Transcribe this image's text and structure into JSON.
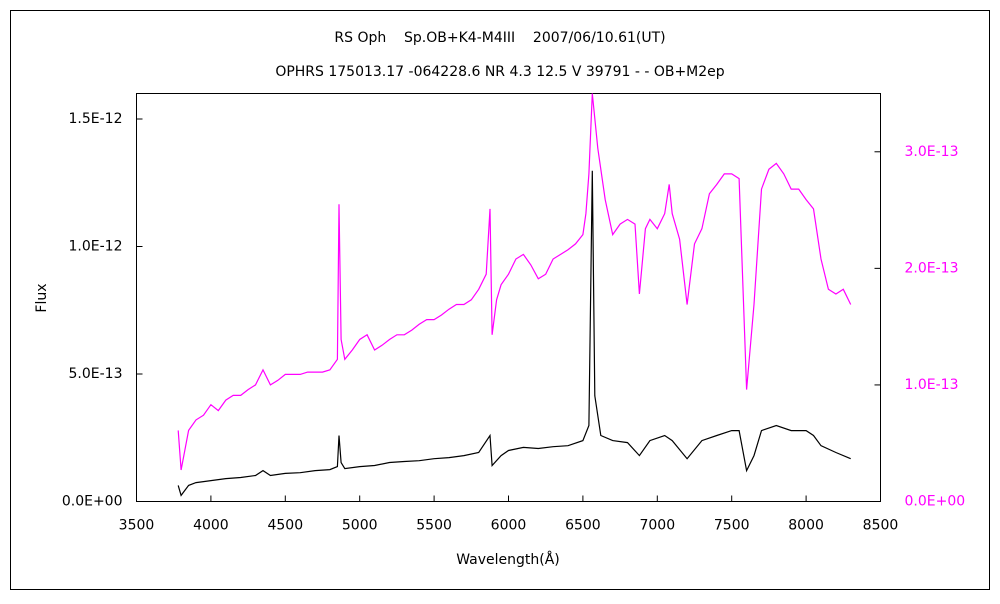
{
  "chart_data": {
    "type": "line",
    "title": "RS Oph    Sp.OB+K4-M4III    2007/06/10.61(UT)",
    "subtitle": "OPHRS 175013.17 -064228.6 NR 4.3 12.5 V 39791 - - OB+M2ep",
    "xlabel": "Wavelength(Å)",
    "ylabel": "Flux",
    "xlim": [
      3500,
      8500
    ],
    "xticks": [
      3500,
      4000,
      4500,
      5000,
      5500,
      6000,
      6500,
      7000,
      7500,
      8000,
      8500
    ],
    "ylim": [
      0,
      1.6e-12
    ],
    "yticks": [
      {
        "value": 0,
        "label": "0.0E+00"
      },
      {
        "value": 5e-13,
        "label": "5.0E-13"
      },
      {
        "value": 1e-12,
        "label": "1.0E-12"
      },
      {
        "value": 1.5e-12,
        "label": "1.5E-12"
      }
    ],
    "y2lim": [
      0,
      3.5e-13
    ],
    "y2ticks": [
      {
        "value": 0,
        "label": "0.0E+00"
      },
      {
        "value": 1e-13,
        "label": "1.0E-13"
      },
      {
        "value": 2e-13,
        "label": "2.0E-13"
      },
      {
        "value": 3e-13,
        "label": "3.0E-13"
      }
    ],
    "y2color": "#ff00ff",
    "series": [
      {
        "color": "#000000",
        "axis": "y",
        "x": [
          3780,
          3800,
          3850,
          3900,
          3950,
          4000,
          4100,
          4200,
          4300,
          4350,
          4400,
          4500,
          4600,
          4700,
          4800,
          4850,
          4861,
          4875,
          4900,
          5000,
          5100,
          5200,
          5300,
          5400,
          5500,
          5600,
          5700,
          5800,
          5876,
          5890,
          5950,
          6000,
          6100,
          6200,
          6300,
          6400,
          6500,
          6540,
          6563,
          6580,
          6620,
          6700,
          6800,
          6880,
          6950,
          7050,
          7100,
          7200,
          7300,
          7400,
          7500,
          7550,
          7600,
          7650,
          7700,
          7800,
          7900,
          8000,
          8050,
          8100,
          8200,
          8300
        ],
        "values": [
          6.3e-14,
          2.4e-14,
          6.3e-14,
          7.4e-14,
          7.8e-14,
          8.2e-14,
          9e-14,
          9.4e-14,
          1.02e-13,
          1.21e-13,
          1.02e-13,
          1.1e-13,
          1.13e-13,
          1.21e-13,
          1.25e-13,
          1.37e-13,
          2.59e-13,
          1.53e-13,
          1.29e-13,
          1.37e-13,
          1.41e-13,
          1.53e-13,
          1.57e-13,
          1.6e-13,
          1.68e-13,
          1.72e-13,
          1.8e-13,
          1.92e-13,
          2.59e-13,
          1.41e-13,
          1.8e-13,
          2e-13,
          2.12e-13,
          2.08e-13,
          2.15e-13,
          2.19e-13,
          2.39e-13,
          2.98e-13,
          1.297e-12,
          4.15e-13,
          2.59e-13,
          2.39e-13,
          2.31e-13,
          1.8e-13,
          2.39e-13,
          2.59e-13,
          2.39e-13,
          1.68e-13,
          2.39e-13,
          2.59e-13,
          2.78e-13,
          2.78e-13,
          1.21e-13,
          1.8e-13,
          2.78e-13,
          2.98e-13,
          2.78e-13,
          2.78e-13,
          2.59e-13,
          2.19e-13,
          1.92e-13,
          1.68e-13
        ]
      },
      {
        "color": "#ff00ff",
        "axis": "y2",
        "x": [
          3780,
          3800,
          3850,
          3900,
          3950,
          4000,
          4050,
          4100,
          4150,
          4200,
          4250,
          4300,
          4350,
          4400,
          4450,
          4500,
          4550,
          4600,
          4650,
          4700,
          4750,
          4800,
          4850,
          4861,
          4875,
          4900,
          4950,
          5000,
          5050,
          5100,
          5150,
          5200,
          5250,
          5300,
          5350,
          5400,
          5450,
          5500,
          5550,
          5600,
          5650,
          5700,
          5750,
          5800,
          5850,
          5876,
          5890,
          5920,
          5950,
          6000,
          6050,
          6100,
          6150,
          6200,
          6250,
          6300,
          6350,
          6400,
          6450,
          6500,
          6520,
          6540,
          6563,
          6600,
          6650,
          6700,
          6750,
          6800,
          6850,
          6880,
          6920,
          6950,
          7000,
          7050,
          7080,
          7100,
          7150,
          7200,
          7250,
          7300,
          7350,
          7400,
          7450,
          7500,
          7550,
          7600,
          7650,
          7700,
          7750,
          7800,
          7850,
          7900,
          7950,
          8000,
          8050,
          8100,
          8150,
          8200,
          8250,
          8300
        ],
        "values": [
          6.1e-14,
          2.7e-14,
          6.1e-14,
          7e-14,
          7.4e-14,
          8.3e-14,
          7.8e-14,
          8.7e-14,
          9.1e-14,
          9.1e-14,
          9.6e-14,
          1e-13,
          1.13e-13,
          1e-13,
          1.04e-13,
          1.09e-13,
          1.09e-13,
          1.09e-13,
          1.11e-13,
          1.11e-13,
          1.11e-13,
          1.13e-13,
          1.22e-13,
          2.55e-13,
          1.39e-13,
          1.22e-13,
          1.3e-13,
          1.39e-13,
          1.43e-13,
          1.3e-13,
          1.34e-13,
          1.39e-13,
          1.43e-13,
          1.43e-13,
          1.47e-13,
          1.52e-13,
          1.56e-13,
          1.56e-13,
          1.6e-13,
          1.65e-13,
          1.69e-13,
          1.69e-13,
          1.73e-13,
          1.82e-13,
          1.95e-13,
          2.51e-13,
          1.43e-13,
          1.73e-13,
          1.86e-13,
          1.95e-13,
          2.08e-13,
          2.12e-13,
          2.03e-13,
          1.91e-13,
          1.95e-13,
          2.08e-13,
          2.12e-13,
          2.16e-13,
          2.21e-13,
          2.29e-13,
          2.47e-13,
          2.81e-13,
          3.5e-13,
          3.03e-13,
          2.59e-13,
          2.29e-13,
          2.38e-13,
          2.42e-13,
          2.38e-13,
          1.78e-13,
          2.34e-13,
          2.42e-13,
          2.34e-13,
          2.47e-13,
          2.72e-13,
          2.47e-13,
          2.25e-13,
          1.69e-13,
          2.21e-13,
          2.34e-13,
          2.64e-13,
          2.72e-13,
          2.81e-13,
          2.81e-13,
          2.77e-13,
          9.6e-14,
          1.69e-13,
          2.68e-13,
          2.85e-13,
          2.9e-13,
          2.81e-13,
          2.68e-13,
          2.68e-13,
          2.59e-13,
          2.51e-13,
          2.08e-13,
          1.82e-13,
          1.78e-13,
          1.82e-13,
          1.69e-13
        ]
      }
    ]
  }
}
